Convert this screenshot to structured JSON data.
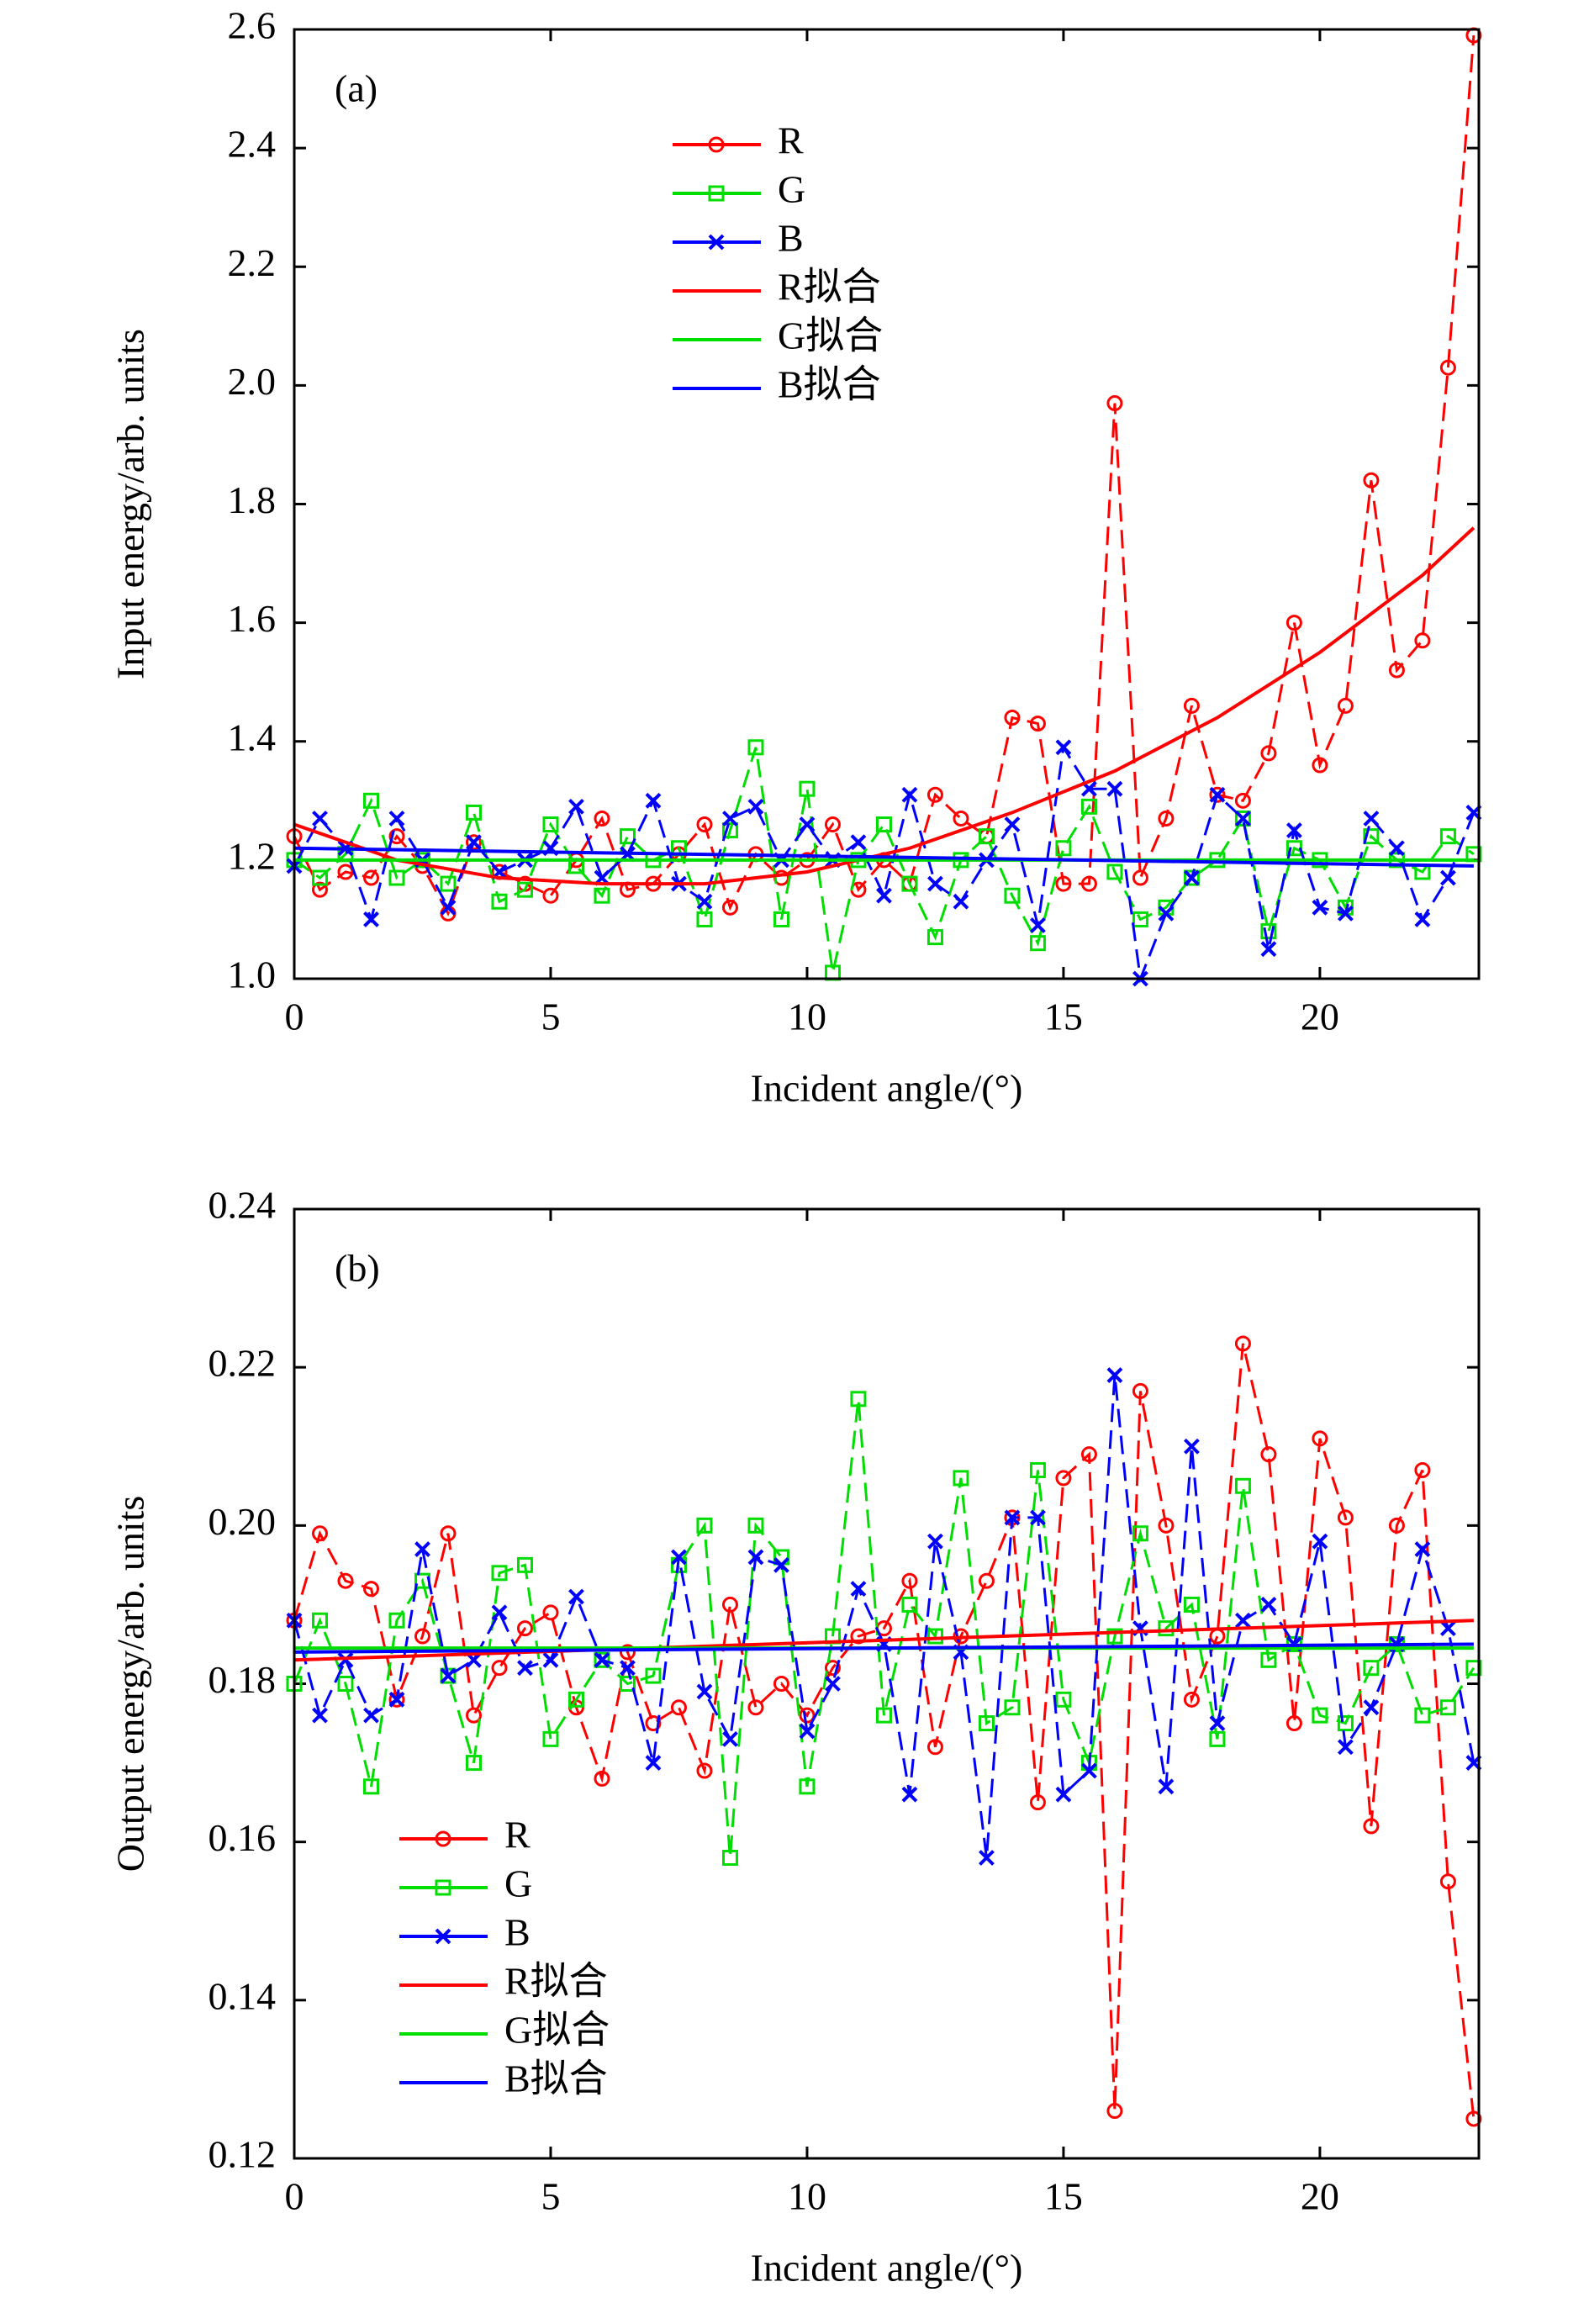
{
  "chart_data": [
    {
      "type": "line",
      "panel_label": "(a)",
      "xlabel": "Incident angle/(°)",
      "ylabel": "Input energy/arb. units",
      "x": [
        0,
        0.5,
        1,
        1.5,
        2,
        2.5,
        3,
        3.5,
        4,
        4.5,
        5,
        5.5,
        6,
        6.5,
        7,
        7.5,
        8,
        8.5,
        9,
        9.5,
        10,
        10.5,
        11,
        11.5,
        12,
        12.5,
        13,
        13.5,
        14,
        14.5,
        15,
        15.5,
        16,
        16.5,
        17,
        17.5,
        18,
        18.5,
        19,
        19.5,
        20,
        20.5,
        21,
        21.5,
        22,
        22.5,
        23
      ],
      "xlim": [
        0,
        23.1
      ],
      "ylim": [
        1.0,
        2.6
      ],
      "xticks": [
        0,
        5,
        10,
        15,
        20
      ],
      "yticks": [
        {
          "value": 1.0,
          "label": "1.0"
        },
        1.2,
        1.4,
        1.6,
        1.8,
        {
          "value": 2.0,
          "label": "2.0"
        },
        2.2,
        2.4,
        2.6
      ],
      "legend_position": "upper center",
      "series": [
        {
          "name": "R",
          "color": "#ff0000",
          "marker": "circle",
          "linestyle": "dashed",
          "values": [
            1.24,
            1.15,
            1.18,
            1.17,
            1.24,
            1.19,
            1.11,
            1.23,
            1.18,
            1.16,
            1.14,
            1.2,
            1.27,
            1.15,
            1.16,
            1.21,
            1.26,
            1.12,
            1.21,
            1.17,
            1.2,
            1.26,
            1.15,
            1.2,
            1.16,
            1.31,
            1.27,
            1.24,
            1.44,
            1.43,
            1.16,
            1.16,
            1.97,
            1.17,
            1.27,
            1.46,
            1.31,
            1.3,
            1.38,
            1.6,
            1.36,
            1.46,
            1.84,
            1.52,
            1.57,
            2.03,
            2.59
          ]
        },
        {
          "name": "G",
          "color": "#00dd00",
          "marker": "square",
          "linestyle": "dashed",
          "values": [
            1.2,
            1.17,
            1.21,
            1.3,
            1.17,
            1.2,
            1.16,
            1.28,
            1.13,
            1.15,
            1.26,
            1.19,
            1.14,
            1.24,
            1.2,
            1.22,
            1.1,
            1.25,
            1.39,
            1.1,
            1.32,
            1.01,
            1.2,
            1.26,
            1.16,
            1.07,
            1.2,
            1.24,
            1.14,
            1.06,
            1.22,
            1.29,
            1.18,
            1.1,
            1.12,
            1.17,
            1.2,
            1.27,
            1.08,
            1.22,
            1.2,
            1.12,
            1.24,
            1.2,
            1.18,
            1.24,
            1.21
          ]
        },
        {
          "name": "B",
          "color": "#0000ff",
          "marker": "x",
          "linestyle": "dashed",
          "values": [
            1.19,
            1.27,
            1.22,
            1.1,
            1.27,
            1.2,
            1.12,
            1.23,
            1.18,
            1.2,
            1.22,
            1.29,
            1.17,
            1.21,
            1.3,
            1.16,
            1.13,
            1.27,
            1.29,
            1.2,
            1.26,
            1.2,
            1.23,
            1.14,
            1.31,
            1.16,
            1.13,
            1.2,
            1.26,
            1.09,
            1.39,
            1.32,
            1.32,
            1.0,
            1.11,
            1.17,
            1.31,
            1.27,
            1.05,
            1.25,
            1.12,
            1.11,
            1.27,
            1.22,
            1.1,
            1.17,
            1.28
          ]
        },
        {
          "name": "R拟合",
          "color": "#ff0000",
          "linestyle": "solid",
          "x": [
            0,
            2,
            4,
            6,
            8,
            10,
            12,
            14,
            16,
            18,
            20,
            22,
            23
          ],
          "values": [
            1.26,
            1.2,
            1.17,
            1.16,
            1.16,
            1.18,
            1.22,
            1.28,
            1.35,
            1.44,
            1.55,
            1.68,
            1.76
          ]
        },
        {
          "name": "G拟合",
          "color": "#00dd00",
          "linestyle": "solid",
          "x": [
            0,
            23
          ],
          "values": [
            1.2,
            1.2
          ]
        },
        {
          "name": "B拟合",
          "color": "#0000ff",
          "linestyle": "solid",
          "x": [
            0,
            23
          ],
          "values": [
            1.22,
            1.19
          ]
        }
      ]
    },
    {
      "type": "line",
      "panel_label": "(b)",
      "xlabel": "Incident angle/(°)",
      "ylabel": "Output energy/arb. units",
      "x": [
        0,
        0.5,
        1,
        1.5,
        2,
        2.5,
        3,
        3.5,
        4,
        4.5,
        5,
        5.5,
        6,
        6.5,
        7,
        7.5,
        8,
        8.5,
        9,
        9.5,
        10,
        10.5,
        11,
        11.5,
        12,
        12.5,
        13,
        13.5,
        14,
        14.5,
        15,
        15.5,
        16,
        16.5,
        17,
        17.5,
        18,
        18.5,
        19,
        19.5,
        20,
        20.5,
        21,
        21.5,
        22,
        22.5,
        23
      ],
      "xlim": [
        0,
        23.1
      ],
      "ylim": [
        0.12,
        0.24
      ],
      "xticks": [
        0,
        5,
        10,
        15,
        20
      ],
      "yticks": [
        0.12,
        0.14,
        0.16,
        0.18,
        {
          "value": 0.2,
          "label": "0.20"
        },
        0.22,
        0.24
      ],
      "legend_position": "lower left",
      "series": [
        {
          "name": "R",
          "color": "#ff0000",
          "marker": "circle",
          "linestyle": "dashed",
          "values": [
            0.188,
            0.199,
            0.193,
            0.192,
            0.178,
            0.186,
            0.199,
            0.176,
            0.182,
            0.187,
            0.189,
            0.177,
            0.168,
            0.184,
            0.175,
            0.177,
            0.169,
            0.19,
            0.177,
            0.18,
            0.176,
            0.182,
            0.186,
            0.187,
            0.193,
            0.172,
            0.186,
            0.193,
            0.201,
            0.165,
            0.206,
            0.209,
            0.126,
            0.217,
            0.2,
            0.178,
            0.186,
            0.223,
            0.209,
            0.175,
            0.211,
            0.201,
            0.162,
            0.2,
            0.207,
            0.155,
            0.125
          ]
        },
        {
          "name": "G",
          "color": "#00dd00",
          "marker": "square",
          "linestyle": "dashed",
          "values": [
            0.18,
            0.188,
            0.18,
            0.167,
            0.188,
            0.193,
            0.181,
            0.17,
            0.194,
            0.195,
            0.173,
            0.178,
            0.183,
            0.18,
            0.181,
            0.195,
            0.2,
            0.158,
            0.2,
            0.196,
            0.167,
            0.186,
            0.216,
            0.176,
            0.19,
            0.186,
            0.206,
            0.175,
            0.177,
            0.207,
            0.178,
            0.17,
            0.186,
            0.199,
            0.187,
            0.19,
            0.173,
            0.205,
            0.183,
            0.185,
            0.176,
            0.175,
            0.182,
            0.185,
            0.176,
            0.177,
            0.182
          ]
        },
        {
          "name": "B",
          "color": "#0000ff",
          "marker": "x",
          "linestyle": "dashed",
          "values": [
            0.188,
            0.176,
            0.183,
            0.176,
            0.178,
            0.197,
            0.181,
            0.183,
            0.189,
            0.182,
            0.183,
            0.191,
            0.183,
            0.182,
            0.17,
            0.196,
            0.179,
            0.173,
            0.196,
            0.195,
            0.174,
            0.18,
            0.192,
            0.185,
            0.166,
            0.198,
            0.184,
            0.158,
            0.201,
            0.201,
            0.166,
            0.169,
            0.219,
            0.187,
            0.167,
            0.21,
            0.175,
            0.188,
            0.19,
            0.185,
            0.198,
            0.172,
            0.177,
            0.185,
            0.197,
            0.187,
            0.17
          ]
        },
        {
          "name": "R拟合",
          "color": "#ff0000",
          "linestyle": "solid",
          "x": [
            0,
            23
          ],
          "values": [
            0.183,
            0.188
          ]
        },
        {
          "name": "G拟合",
          "color": "#00dd00",
          "linestyle": "solid",
          "x": [
            0,
            23
          ],
          "values": [
            0.1845,
            0.1845
          ]
        },
        {
          "name": "B拟合",
          "color": "#0000ff",
          "linestyle": "solid",
          "x": [
            0,
            23
          ],
          "values": [
            0.184,
            0.185
          ]
        }
      ]
    }
  ]
}
